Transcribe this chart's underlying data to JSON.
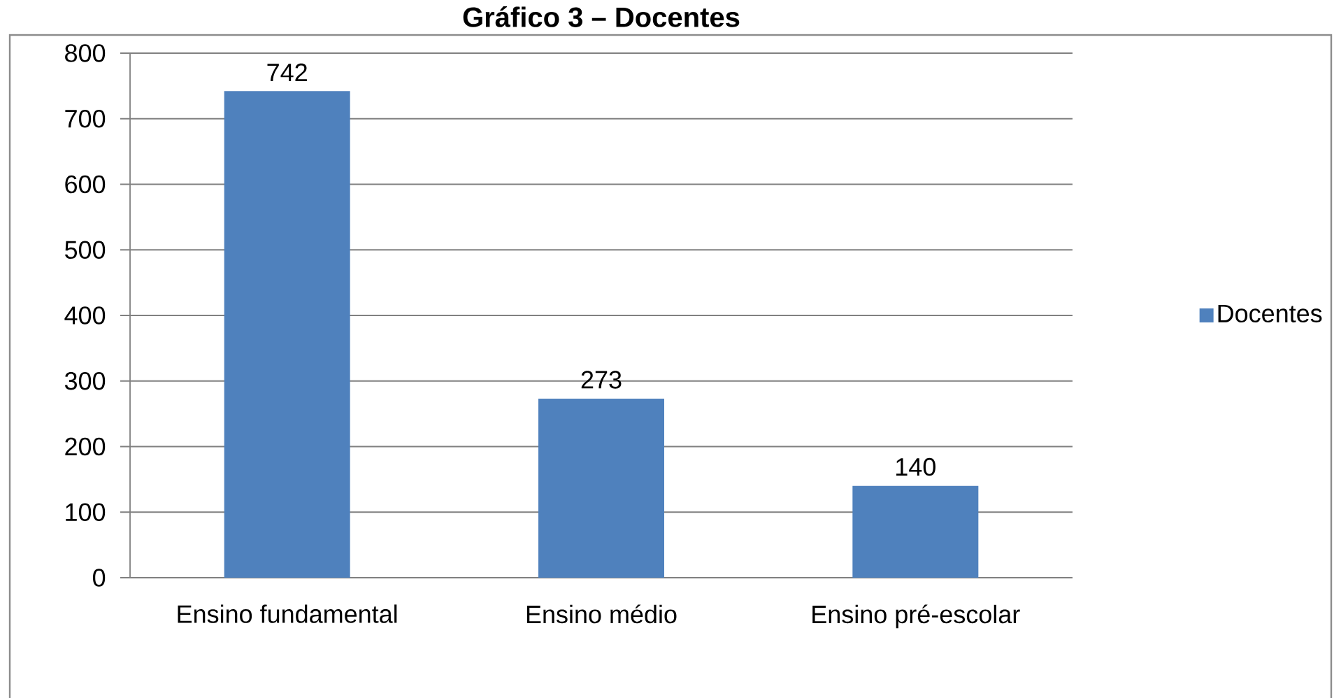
{
  "chart_data": {
    "type": "bar",
    "title": "Gráfico 3 – Docentes",
    "categories": [
      "Ensino fundamental",
      "Ensino médio",
      "Ensino pré-escolar"
    ],
    "series": [
      {
        "name": "Docentes",
        "color": "#4f81bd",
        "values": [
          742,
          273,
          140
        ]
      }
    ],
    "ylim": [
      0,
      800
    ],
    "yticks": [
      0,
      100,
      200,
      300,
      400,
      500,
      600,
      700,
      800
    ],
    "grid": "y",
    "legend": "right",
    "data_labels": true
  }
}
